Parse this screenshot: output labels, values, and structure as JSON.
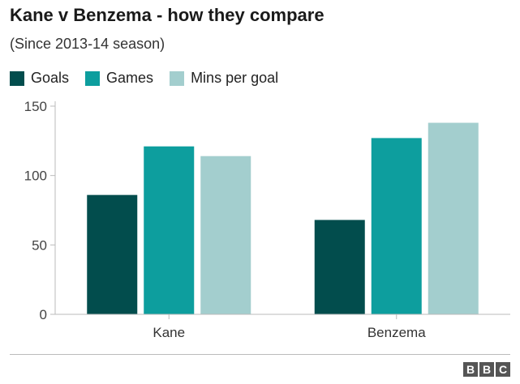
{
  "chart_data": {
    "type": "bar",
    "title": "Kane v Benzema - how they compare",
    "subtitle": "(Since 2013-14 season)",
    "categories": [
      "Kane",
      "Benzema"
    ],
    "series": [
      {
        "name": "Goals",
        "color": "#024d4d",
        "values": [
          86,
          68
        ]
      },
      {
        "name": "Games",
        "color": "#0d9e9e",
        "values": [
          121,
          127
        ]
      },
      {
        "name": "Mins per goal",
        "color": "#a3cece",
        "values": [
          114,
          138
        ]
      }
    ],
    "yticks": [
      0,
      50,
      100,
      150
    ],
    "ylim": [
      0,
      150
    ],
    "legend_position": "top-left",
    "grid": false
  },
  "footer": {
    "brand": [
      "B",
      "B",
      "C"
    ]
  }
}
